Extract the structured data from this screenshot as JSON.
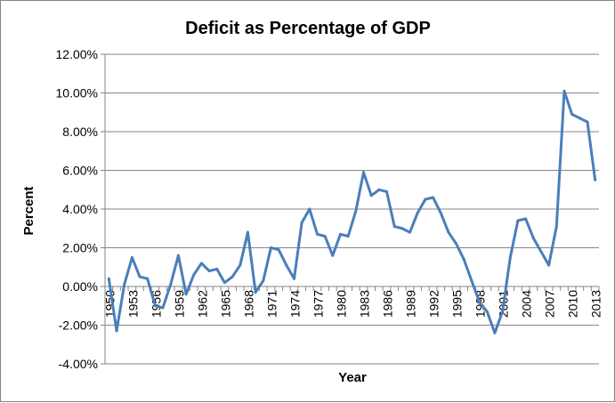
{
  "chart_data": {
    "type": "line",
    "title": "Deficit as Percentage of GDP",
    "xlabel": "Year",
    "ylabel": "Percent",
    "ylim": [
      -4,
      12
    ],
    "yticks": [
      -4,
      -2,
      0,
      2,
      4,
      6,
      8,
      10,
      12
    ],
    "ytick_labels": [
      "-4.00%",
      "-2.00%",
      "0.00%",
      "2.00%",
      "4.00%",
      "6.00%",
      "8.00%",
      "10.00%",
      "12.00%"
    ],
    "xtick_labels": [
      "1950",
      "1953",
      "1956",
      "1959",
      "1962",
      "1965",
      "1968",
      "1971",
      "1974",
      "1977",
      "1980",
      "1983",
      "1986",
      "1989",
      "1992",
      "1995",
      "1998",
      "2001",
      "2004",
      "2007",
      "2010",
      "2013"
    ],
    "grid": true,
    "legend": "none",
    "line_color": "#4a7ebb",
    "series": [
      {
        "name": "Deficit",
        "x": [
          1950,
          1951,
          1952,
          1953,
          1954,
          1955,
          1956,
          1957,
          1958,
          1959,
          1960,
          1961,
          1962,
          1963,
          1964,
          1965,
          1966,
          1967,
          1968,
          1969,
          1970,
          1971,
          1972,
          1973,
          1974,
          1975,
          1976,
          1977,
          1978,
          1979,
          1980,
          1981,
          1982,
          1983,
          1984,
          1985,
          1986,
          1987,
          1988,
          1989,
          1990,
          1991,
          1992,
          1993,
          1994,
          1995,
          1996,
          1997,
          1998,
          1999,
          2000,
          2001,
          2002,
          2003,
          2004,
          2005,
          2006,
          2007,
          2008,
          2009,
          2010,
          2011,
          2012,
          2013
        ],
        "values": [
          0.4,
          -2.3,
          0.1,
          1.5,
          0.5,
          0.4,
          -1.0,
          -1.1,
          0.1,
          1.6,
          -0.4,
          0.6,
          1.2,
          0.8,
          0.9,
          0.2,
          0.5,
          1.1,
          2.8,
          -0.3,
          0.3,
          2.0,
          1.9,
          1.1,
          0.4,
          3.3,
          4.0,
          2.7,
          2.6,
          1.6,
          2.7,
          2.6,
          3.9,
          5.9,
          4.7,
          5.0,
          4.9,
          3.1,
          3.0,
          2.8,
          3.8,
          4.5,
          4.6,
          3.8,
          2.8,
          2.2,
          1.4,
          0.3,
          -0.8,
          -1.3,
          -2.4,
          -1.3,
          1.5,
          3.4,
          3.5,
          2.5,
          1.8,
          1.1,
          3.1,
          10.1,
          8.9,
          8.7,
          8.5,
          5.5
        ]
      }
    ]
  }
}
